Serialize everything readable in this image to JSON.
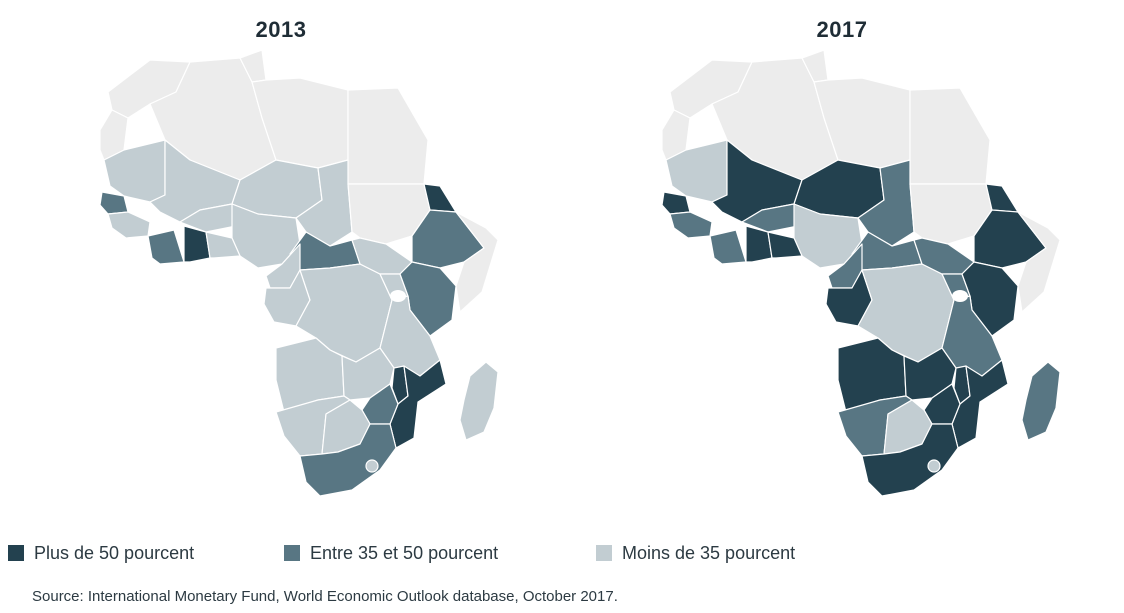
{
  "maps": [
    {
      "title": "2013"
    },
    {
      "title": "2017"
    }
  ],
  "legend": [
    {
      "label": "Plus de 50 pourcent",
      "color": "#23414f"
    },
    {
      "label": "Entre 35 et 50 pourcent",
      "color": "#587683"
    },
    {
      "label": "Moins de 35 pourcent",
      "color": "#c2cdd2"
    }
  ],
  "no_data_color": "#ececec",
  "border_color": "#ffffff",
  "source": "Source: International Monetary Fund, World Economic Outlook database, October 2017."
}
